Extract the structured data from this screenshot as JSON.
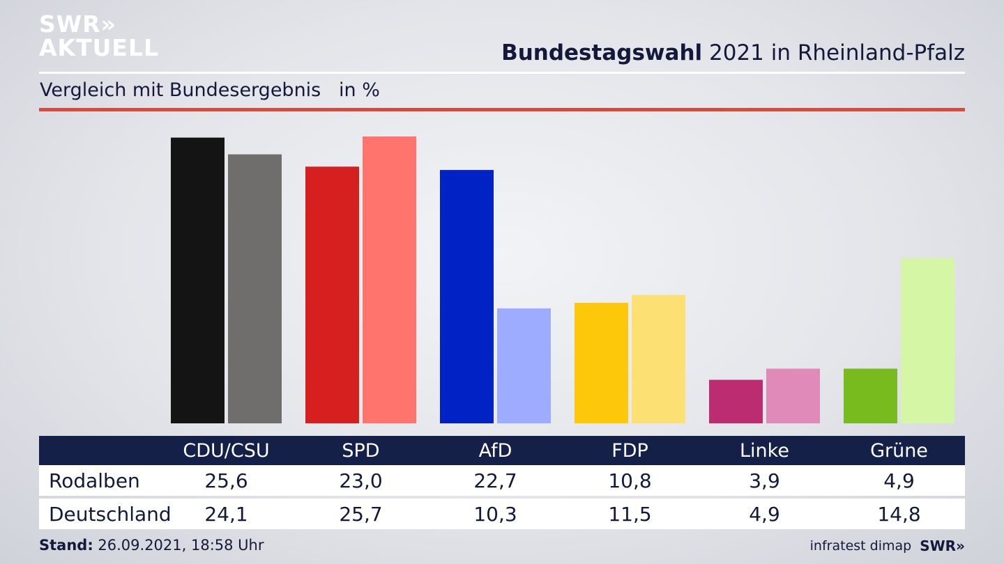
{
  "logo": {
    "line1": "SWR»",
    "line2": "AKTUELL"
  },
  "title": {
    "bold": "Bundestagswahl",
    "rest": " 2021 in Rheinland-Pfalz"
  },
  "subtitle": "Vergleich mit Bundesergebnis   in %",
  "chart_data": {
    "type": "bar",
    "categories": [
      "CDU/CSU",
      "SPD",
      "AfD",
      "FDP",
      "Linke",
      "Grüne"
    ],
    "series": [
      {
        "name": "Rodalben",
        "values": [
          25.6,
          23.0,
          22.7,
          10.8,
          3.9,
          4.9
        ]
      },
      {
        "name": "Deutschland",
        "values": [
          24.1,
          25.7,
          10.3,
          11.5,
          4.9,
          14.8
        ]
      }
    ],
    "colors": {
      "Rodalben": [
        "#141414",
        "#d61f1f",
        "#0122c4",
        "#fdc80a",
        "#bb2d70",
        "#78bb1e"
      ],
      "Deutschland": [
        "#6f6e6c",
        "#ff756e",
        "#9dacff",
        "#fde073",
        "#df8ab8",
        "#d5f6a5"
      ]
    },
    "ylim": [
      0,
      26.2
    ]
  },
  "table": {
    "headers": [
      "CDU/CSU",
      "SPD",
      "AfD",
      "FDP",
      "Linke",
      "Grüne"
    ],
    "rows": [
      {
        "label": "Rodalben",
        "values": [
          "25,6",
          "23,0",
          "22,7",
          "10,8",
          "3,9",
          "4,9"
        ]
      },
      {
        "label": "Deutschland",
        "values": [
          "24,1",
          "25,7",
          "10,3",
          "11,5",
          "4,9",
          "14,8"
        ]
      }
    ]
  },
  "footer": {
    "stand_label": "Stand:",
    "stand_value": " 26.09.2021, 18:58 Uhr",
    "source": "infratest dimap",
    "brand": "SWR»"
  }
}
